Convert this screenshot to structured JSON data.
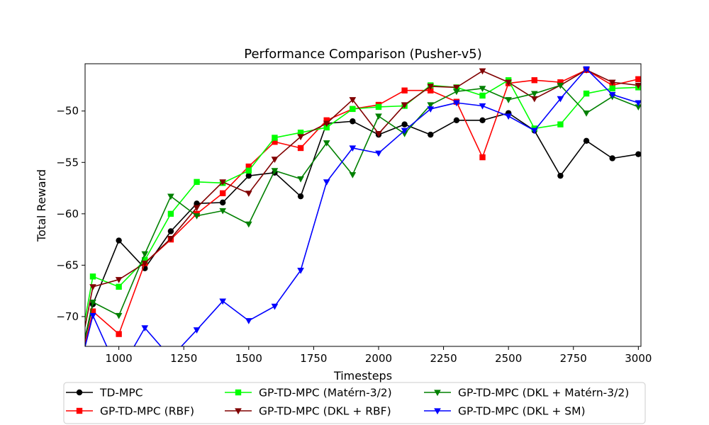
{
  "chart_data": {
    "type": "line",
    "title": "Performance Comparison (Pusher-v5)",
    "xlabel": "Timesteps",
    "ylabel": "Total Reward",
    "xlim": [
      870,
      3010
    ],
    "ylim": [
      -72.9,
      -45.4
    ],
    "xticks": [
      1000,
      1250,
      1500,
      1750,
      2000,
      2250,
      2500,
      2750,
      3000
    ],
    "yticks": [
      -70,
      -65,
      -60,
      -55,
      -50
    ],
    "legend_position": "bottom",
    "grid": false,
    "x": [
      800,
      900,
      1000,
      1100,
      1200,
      1300,
      1400,
      1500,
      1600,
      1700,
      1800,
      1900,
      2000,
      2100,
      2200,
      2300,
      2400,
      2500,
      2600,
      2700,
      2800,
      2900,
      3000
    ],
    "series": [
      {
        "name": "TD-MPC",
        "color": "#000000",
        "marker": "circle",
        "values": [
          -80.0,
          -68.8,
          -62.6,
          -65.3,
          -61.7,
          -59.0,
          -58.9,
          -56.3,
          -56.0,
          -58.3,
          -51.2,
          -51.0,
          -52.3,
          -51.3,
          -52.3,
          -50.9,
          -50.9,
          -50.2,
          -51.9,
          -56.3,
          -52.9,
          -54.6,
          -54.2
        ]
      },
      {
        "name": "GP-TD-MPC (RBF)",
        "color": "#ff0000",
        "marker": "square",
        "values": [
          -80.0,
          -69.5,
          -71.7,
          -64.8,
          -62.5,
          -60.0,
          -58.0,
          -55.4,
          -53.0,
          -53.6,
          -50.9,
          -49.8,
          -49.4,
          -48.0,
          -48.0,
          -49.1,
          -54.5,
          -47.3,
          -47.0,
          -47.2,
          -46.0,
          -47.5,
          -46.9
        ]
      },
      {
        "name": "GP-TD-MPC (Matérn-3/2)",
        "color": "#00ff00",
        "marker": "square",
        "values": [
          -80.0,
          -66.1,
          -67.1,
          -64.5,
          -60.0,
          -56.9,
          -57.0,
          -55.8,
          -52.6,
          -52.1,
          -51.6,
          -49.8,
          -49.6,
          -49.5,
          -47.5,
          -47.7,
          -48.5,
          -47.0,
          -51.7,
          -51.3,
          -48.3,
          -47.8,
          -47.7
        ]
      },
      {
        "name": "GP-TD-MPC (DKL + RBF)",
        "color": "#800000",
        "marker": "triangle-down",
        "values": [
          -80.0,
          -67.1,
          -66.4,
          -64.8,
          -62.4,
          -59.4,
          -56.9,
          -58.0,
          -54.7,
          -52.5,
          -51.2,
          -48.9,
          -52.2,
          -49.4,
          -47.6,
          -47.7,
          -46.1,
          -47.2,
          -48.8,
          -47.5,
          -46.0,
          -47.2,
          -47.5
        ]
      },
      {
        "name": "GP-TD-MPC (DKL + Matérn-3/2)",
        "color": "#008000",
        "marker": "triangle-down",
        "values": [
          -80.0,
          -68.6,
          -69.9,
          -63.9,
          -58.3,
          -60.2,
          -59.7,
          -61.0,
          -55.8,
          -56.6,
          -53.1,
          -56.2,
          -50.5,
          -52.2,
          -49.4,
          -48.1,
          -47.8,
          -48.9,
          -48.3,
          -47.5,
          -50.2,
          -48.6,
          -49.6
        ]
      },
      {
        "name": "GP-TD-MPC (DKL + SM)",
        "color": "#0000ff",
        "marker": "triangle-down",
        "values": [
          -80.0,
          -69.9,
          -75.5,
          -71.1,
          -74.0,
          -71.3,
          -68.5,
          -70.4,
          -69.0,
          -65.5,
          -56.9,
          -53.6,
          -54.1,
          -51.9,
          -49.8,
          -49.2,
          -49.5,
          -50.5,
          -51.9,
          -48.8,
          -45.9,
          -48.4,
          -49.2
        ]
      }
    ]
  }
}
